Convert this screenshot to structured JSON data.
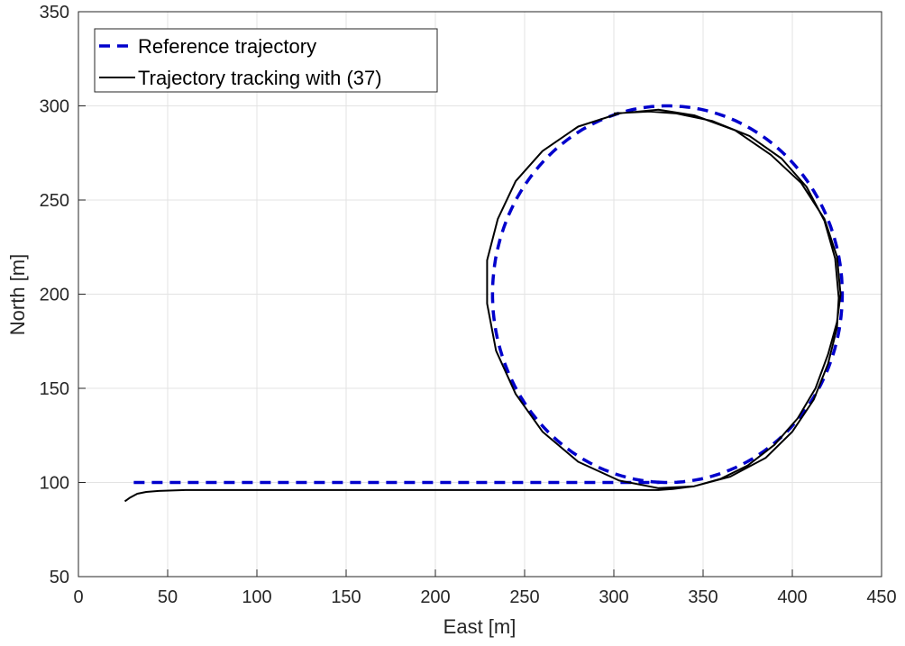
{
  "chart_data": {
    "type": "line",
    "title": "",
    "xlabel": "East [m]",
    "ylabel": "North [m]",
    "xlim": [
      0,
      450
    ],
    "ylim": [
      50,
      350
    ],
    "xticks": [
      0,
      50,
      100,
      150,
      200,
      250,
      300,
      350,
      400,
      450
    ],
    "yticks": [
      50,
      100,
      150,
      200,
      250,
      300,
      350
    ],
    "grid": true,
    "legend_position": "top-left",
    "series": [
      {
        "name": "Reference trajectory",
        "style": "dashed",
        "color": "#0000cc",
        "segments": [
          {
            "kind": "line",
            "x": [
              31,
              325
            ],
            "y": [
              100,
              100
            ]
          },
          {
            "kind": "circle",
            "center": [
              330,
              200
            ],
            "radius_x": 98,
            "radius_y": 100
          }
        ]
      },
      {
        "name": "Trajectory tracking with (37)",
        "style": "solid",
        "color": "#000000",
        "x": [
          26,
          29,
          33,
          38,
          45,
          60,
          100,
          200,
          300,
          315,
          325,
          333,
          345,
          360,
          375,
          390,
          403,
          413,
          420,
          425,
          427,
          425,
          418,
          405,
          388,
          368,
          345,
          325,
          303,
          280,
          260,
          245,
          235,
          229,
          229,
          234,
          245,
          260,
          280,
          303,
          325,
          345,
          365,
          385,
          400,
          412,
          420,
          425,
          426,
          424,
          418,
          408,
          394,
          376,
          355,
          335,
          320,
          310,
          300
        ],
        "y": [
          90,
          92,
          94,
          95,
          95.5,
          96,
          96,
          96,
          96,
          96,
          96,
          96.5,
          98,
          102,
          109,
          120,
          134,
          150,
          168,
          185,
          200,
          220,
          240,
          259,
          274,
          287,
          295,
          298,
          296,
          289,
          276,
          260,
          240,
          218,
          195,
          170,
          147,
          127,
          111,
          101,
          97,
          98,
          103,
          113,
          127,
          144,
          163,
          182,
          198,
          219,
          239,
          257,
          272,
          284,
          292,
          296,
          297,
          296.5,
          296
        ]
      }
    ]
  }
}
